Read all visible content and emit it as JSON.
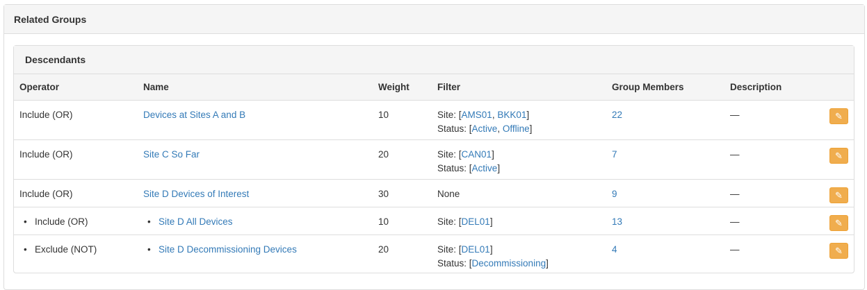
{
  "panel_title": "Related Groups",
  "subpanel_title": "Descendants",
  "columns": [
    "Operator",
    "Name",
    "Weight",
    "Filter",
    "Group Members",
    "Description"
  ],
  "accent_color": "#337ab7",
  "edit_button_color": "#f0ad4e",
  "rows": [
    {
      "nested": false,
      "operator": "Include (OR)",
      "name": "Devices at Sites A and B",
      "weight": "10",
      "filter": [
        {
          "label": "Site: ",
          "values": [
            "AMS01",
            "BKK01"
          ]
        },
        {
          "label": "Status: ",
          "values": [
            "Active",
            "Offline"
          ]
        }
      ],
      "members": "22",
      "description": "—"
    },
    {
      "nested": false,
      "operator": "Include (OR)",
      "name": "Site C So Far",
      "weight": "20",
      "filter": [
        {
          "label": "Site: ",
          "values": [
            "CAN01"
          ]
        },
        {
          "label": "Status: ",
          "values": [
            "Active"
          ]
        }
      ],
      "members": "7",
      "description": "—"
    },
    {
      "nested": false,
      "operator": "Include (OR)",
      "name": "Site D Devices of Interest",
      "weight": "30",
      "filter_text": "None",
      "members": "9",
      "description": "—"
    },
    {
      "nested": true,
      "operator": "Include (OR)",
      "name": "Site D All Devices",
      "weight": "10",
      "filter": [
        {
          "label": "Site: ",
          "values": [
            "DEL01"
          ]
        }
      ],
      "members": "13",
      "description": "—"
    },
    {
      "nested": true,
      "operator": "Exclude (NOT)",
      "name": "Site D Decommissioning Devices",
      "weight": "20",
      "filter": [
        {
          "label": "Site: ",
          "values": [
            "DEL01"
          ]
        },
        {
          "label": "Status: ",
          "values": [
            "Decommissioning"
          ]
        }
      ],
      "members": "4",
      "description": "—"
    }
  ]
}
